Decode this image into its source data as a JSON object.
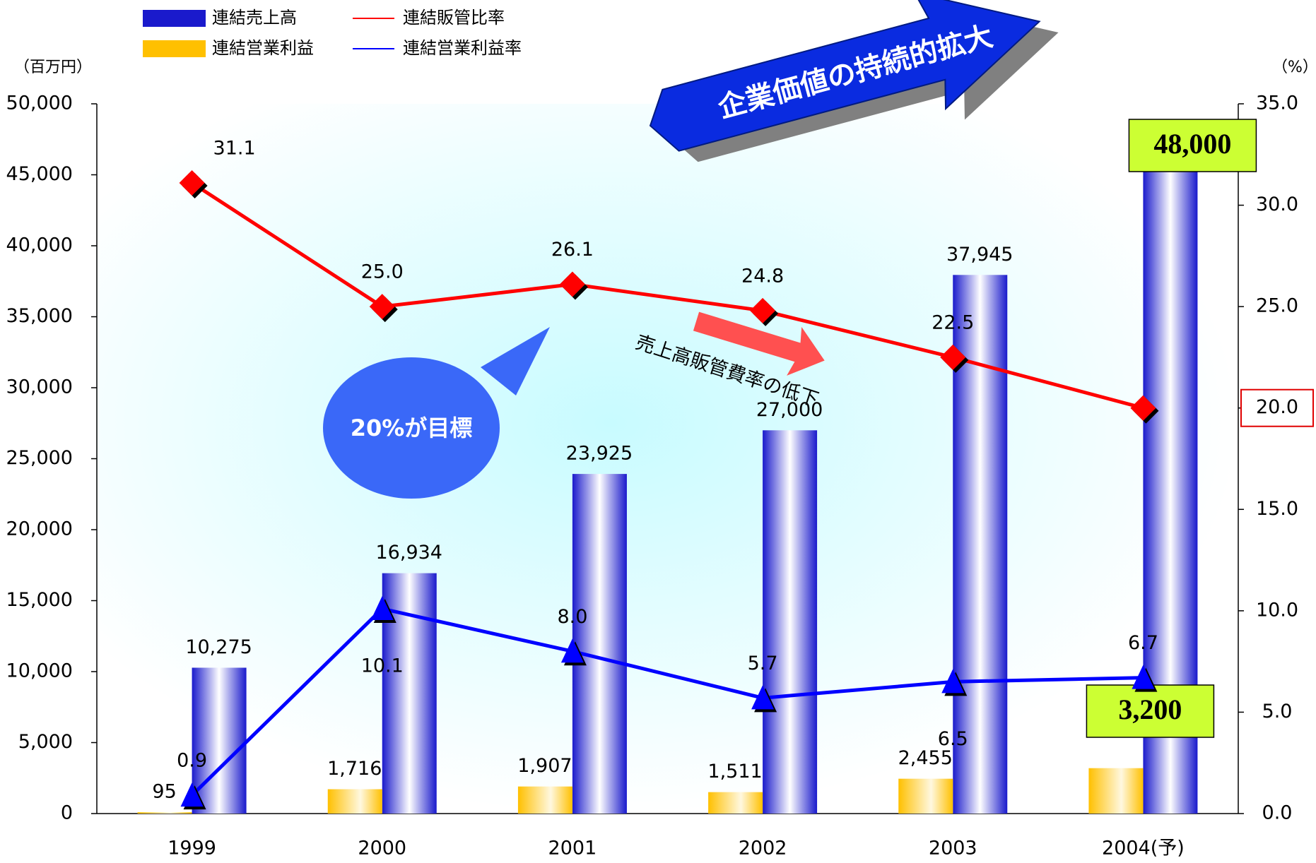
{
  "chart_data": {
    "type": "combo",
    "units_left": "（百万円）",
    "units_right": "（%）",
    "annotations": [
      "企業価値の持続的拡大",
      "20%が目標",
      "売上高販管費率の低下"
    ],
    "categories": [
      "1999",
      "2000",
      "2001",
      "2002",
      "2003",
      "2004(予)"
    ],
    "series": [
      {
        "name": "連結売上高",
        "type": "bar",
        "color": "#1a1acc",
        "values": [
          10275,
          16934,
          23925,
          27000,
          37945,
          48000
        ],
        "value_labels": [
          "10,275",
          "16,934",
          "23,925",
          "27,000",
          "37,945",
          "48,000"
        ]
      },
      {
        "name": "連結営業利益",
        "type": "bar",
        "color": "#ffc000",
        "values": [
          95,
          1716,
          1907,
          1511,
          2455,
          3200
        ],
        "value_labels": [
          "95",
          "1,716",
          "1,907",
          "1,511",
          "2,455",
          "3,200"
        ]
      },
      {
        "name": "連結販管比率",
        "type": "line",
        "axis": "y2",
        "color": "#ff0000",
        "values": [
          31.1,
          25.0,
          26.1,
          24.8,
          22.5,
          20.0
        ],
        "value_labels": [
          "31.1",
          "25.0",
          "26.1",
          "24.8",
          "22.5",
          null
        ]
      },
      {
        "name": "連結営業利益率",
        "type": "line",
        "axis": "y2",
        "color": "#0000ff",
        "values": [
          0.9,
          10.1,
          8.0,
          5.7,
          6.5,
          6.7
        ],
        "value_labels": [
          "0.9",
          "10.1",
          "8.0",
          "5.7",
          "6.5",
          "6.7"
        ]
      }
    ],
    "ylim": [
      0,
      50000
    ],
    "yticks": [
      0,
      {
        "value": 5000,
        "label": "5,000"
      },
      {
        "value": 10000,
        "label": "10,000"
      },
      {
        "value": 15000,
        "label": "15,000"
      },
      {
        "value": 20000,
        "label": "20,000"
      },
      {
        "value": 25000,
        "label": "25,000"
      },
      {
        "value": 30000,
        "label": "30,000"
      },
      {
        "value": 35000,
        "label": "35,000"
      },
      {
        "value": 40000,
        "label": "40,000"
      },
      {
        "value": 45000,
        "label": "45,000"
      },
      {
        "value": 50000,
        "label": "50,000"
      }
    ],
    "y2lim": [
      0,
      35
    ],
    "y2ticks": [
      {
        "value": 0,
        "label": "0.0"
      },
      {
        "value": 5,
        "label": "5.0"
      },
      {
        "value": 10,
        "label": "10.0"
      },
      {
        "value": 15,
        "label": "15.0"
      },
      {
        "value": 20,
        "label": "20.0"
      },
      {
        "value": 25,
        "label": "25.0"
      },
      {
        "value": 30,
        "label": "30.0"
      },
      {
        "value": 35,
        "label": "35.0"
      }
    ],
    "highlighted_y2tick": 20,
    "grid": false
  }
}
